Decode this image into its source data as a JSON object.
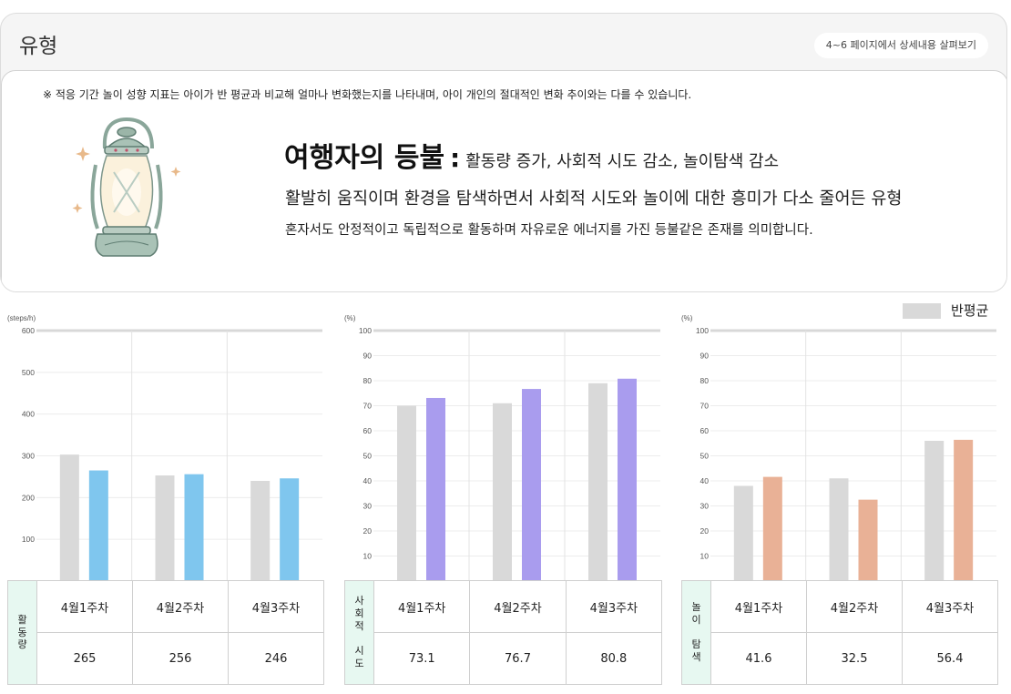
{
  "header": {
    "title": "유형",
    "detail_link": "4~6 페이지에서 상세내용 살펴보기"
  },
  "summary": {
    "notice": "※ 적응 기간 놀이 성향 지표는 아이가 반 평균과 비교해 얼마나 변화했는지를 나타내며, 아이 개인의 절대적인 변화 추이와는 다를 수 있습니다.",
    "type_name": "여행자의 등불",
    "separator": ":",
    "traits": "활동량 증가, 사회적 시도 감소, 놀이탐색 감소",
    "description_main": "활발히 움직이며 환경을 탐색하면서 사회적 시도와 놀이에 대한 흥미가 다소 줄어든 유형",
    "description_sub": "혼자서도 안정적이고 독립적으로 활동하며 자유로운 에너지를 가진 등불같은 존재를 의미합니다.",
    "icon": "lantern-icon"
  },
  "legend": {
    "average_label": "반평균",
    "average_color": "#d9d9d9"
  },
  "chart_data": [
    {
      "type": "bar",
      "unit": "(steps/h)",
      "categories": [
        "4월1주차",
        "4월2주차",
        "4월3주차"
      ],
      "ylim": [
        0,
        600
      ],
      "yticks": [
        "100",
        "200",
        "300",
        "400",
        "500",
        "600"
      ],
      "series": [
        {
          "name": "반평균",
          "values": [
            303,
            253,
            240
          ],
          "color": "#d9d9d9"
        },
        {
          "values": [
            265,
            256,
            246
          ],
          "color": "#7fc6ee"
        }
      ],
      "table_label": [
        "활",
        "동",
        "량"
      ],
      "table_values": [
        "265",
        "256",
        "246"
      ]
    },
    {
      "type": "bar",
      "unit": "(%)",
      "categories": [
        "4월1주차",
        "4월2주차",
        "4월3주차"
      ],
      "ylim": [
        0,
        100
      ],
      "yticks": [
        "10",
        "20",
        "30",
        "40",
        "50",
        "60",
        "70",
        "80",
        "90",
        "100"
      ],
      "series": [
        {
          "name": "반평균",
          "values": [
            70.0,
            71.0,
            79.0
          ],
          "color": "#d9d9d9"
        },
        {
          "values": [
            73.1,
            76.7,
            80.8
          ],
          "color": "#a99cee"
        }
      ],
      "table_label": [
        "사",
        "회",
        "적",
        "",
        "시",
        "도"
      ],
      "table_values": [
        "73.1",
        "76.7",
        "80.8"
      ]
    },
    {
      "type": "bar",
      "unit": "(%)",
      "categories": [
        "4월1주차",
        "4월2주차",
        "4월3주차"
      ],
      "ylim": [
        0,
        100
      ],
      "yticks": [
        "10",
        "20",
        "30",
        "40",
        "50",
        "60",
        "70",
        "80",
        "90",
        "100"
      ],
      "series": [
        {
          "name": "반평균",
          "values": [
            38.0,
            41.0,
            56.0
          ],
          "color": "#d9d9d9"
        },
        {
          "values": [
            41.6,
            32.5,
            56.4
          ],
          "color": "#e9b196"
        }
      ],
      "table_label": [
        "놀",
        "이",
        "",
        "탐",
        "색"
      ],
      "table_values": [
        "41.6",
        "32.5",
        "56.4"
      ]
    }
  ]
}
